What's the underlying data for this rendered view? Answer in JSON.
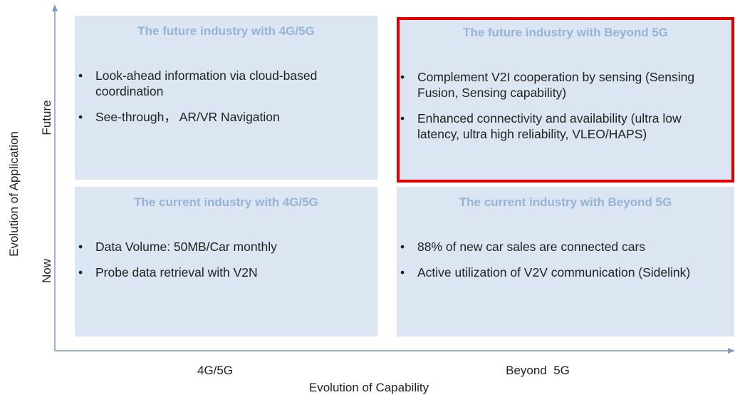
{
  "quadrants": [
    {
      "title": "The future industry with 4G/5G",
      "bullets": [
        "Look-ahead information via cloud-based coordination",
        "See-through， AR/VR Navigation"
      ]
    },
    {
      "title": "The future industry with Beyond 5G",
      "bullets": [
        "Complement V2I cooperation by sensing (Sensing Fusion, Sensing capability)",
        "Enhanced connectivity and availability (ultra low latency, ultra high reliability, VLEO/HAPS)"
      ]
    },
    {
      "title": "The current industry with 4G/5G",
      "bullets": [
        "Data Volume: 50MB/Car monthly",
        "Probe data retrieval with V2N"
      ]
    },
    {
      "title": "The current industry with Beyond 5G",
      "bullets": [
        "88% of new car sales are connected cars",
        "Active utilization of V2V communication (Sidelink)"
      ]
    }
  ],
  "y_axis": {
    "title": "Evolution of Application",
    "labels": [
      "Future",
      "Now"
    ]
  },
  "x_axis": {
    "title": "Evolution of Capability",
    "labels": [
      "4G/5G",
      "Beyond  5G"
    ]
  }
}
